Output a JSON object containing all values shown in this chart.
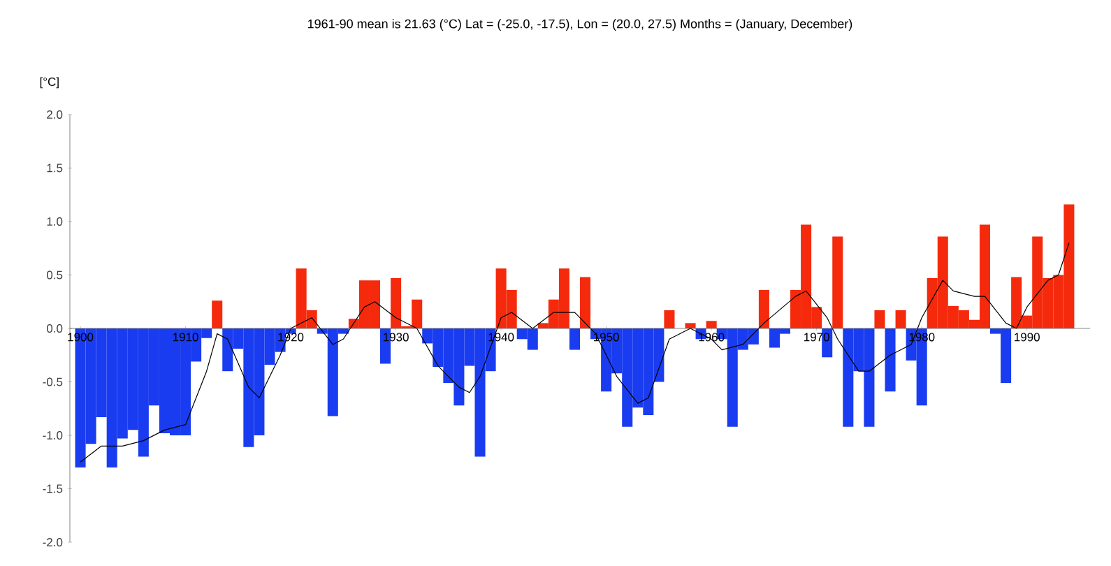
{
  "chart_data": {
    "type": "bar",
    "title": "1961-90 mean is 21.63 (°C)    Lat = (-25.0, -17.5), Lon = (20.0, 27.5)    Months = (January, December)",
    "ylabel": "[°C]",
    "x": [
      1900,
      1901,
      1902,
      1903,
      1904,
      1905,
      1906,
      1907,
      1908,
      1909,
      1910,
      1911,
      1912,
      1913,
      1914,
      1915,
      1916,
      1917,
      1918,
      1919,
      1920,
      1921,
      1922,
      1923,
      1924,
      1925,
      1926,
      1927,
      1928,
      1929,
      1930,
      1931,
      1932,
      1933,
      1934,
      1935,
      1936,
      1937,
      1938,
      1939,
      1940,
      1941,
      1942,
      1943,
      1944,
      1945,
      1946,
      1947,
      1948,
      1949,
      1950,
      1951,
      1952,
      1953,
      1954,
      1955,
      1956,
      1957,
      1958,
      1959,
      1960,
      1961,
      1962,
      1963,
      1964,
      1965,
      1966,
      1967,
      1968,
      1969,
      1970,
      1971,
      1972,
      1973,
      1974,
      1975,
      1976,
      1977,
      1978,
      1979,
      1980,
      1981,
      1982,
      1983,
      1984,
      1985,
      1986,
      1987,
      1988,
      1989,
      1990,
      1991,
      1992,
      1993,
      1994
    ],
    "series": [
      {
        "values": [
          -1.3,
          -1.08,
          -0.83,
          -1.3,
          -1.03,
          -0.95,
          -1.2,
          -0.72,
          -0.98,
          -1.0,
          -1.0,
          -0.31,
          -0.09,
          0.26,
          -0.4,
          -0.19,
          -1.11,
          -1.0,
          -0.34,
          -0.22,
          -0.05,
          0.56,
          0.17,
          -0.05,
          -0.82,
          -0.05,
          0.09,
          0.45,
          0.45,
          -0.33,
          0.47,
          0.02,
          0.27,
          -0.14,
          -0.36,
          -0.51,
          -0.72,
          -0.35,
          -1.2,
          -0.4,
          0.56,
          0.36,
          -0.1,
          -0.2,
          0.05,
          0.27,
          0.56,
          -0.2,
          0.48,
          -0.1,
          -0.59,
          -0.42,
          -0.92,
          -0.74,
          -0.81,
          -0.5,
          0.17,
          0.0,
          0.05,
          -0.1,
          0.07,
          -0.1,
          -0.92,
          -0.2,
          -0.15,
          0.36,
          -0.18,
          -0.05,
          0.36,
          0.97,
          0.2,
          -0.27,
          0.86,
          -0.92,
          -0.4,
          -0.92,
          0.17,
          -0.59,
          0.17,
          -0.3,
          -0.72,
          0.47,
          0.86,
          0.21,
          0.17,
          0.08,
          0.97,
          -0.05,
          -0.51,
          0.48,
          0.12,
          0.86,
          0.47,
          0.5,
          1.16
        ],
        "colors": [
          "#1a3cf0",
          "#1a3cf0",
          "#1a3cf0",
          "#1a3cf0",
          "#1a3cf0",
          "#1a3cf0",
          "#1a3cf0",
          "#1a3cf0",
          "#1a3cf0",
          "#1a3cf0",
          "#1a3cf0",
          "#1a3cf0",
          "#1a3cf0",
          "#f52a0c",
          "#1a3cf0",
          "#1a3cf0",
          "#1a3cf0",
          "#1a3cf0",
          "#1a3cf0",
          "#1a3cf0",
          "#1a3cf0",
          "#f52a0c",
          "#f52a0c",
          "#1a3cf0",
          "#1a3cf0",
          "#1a3cf0",
          "#f52a0c",
          "#f52a0c",
          "#f52a0c",
          "#1a3cf0",
          "#f52a0c",
          "#f52a0c",
          "#f52a0c",
          "#1a3cf0",
          "#1a3cf0",
          "#1a3cf0",
          "#1a3cf0",
          "#1a3cf0",
          "#1a3cf0",
          "#1a3cf0",
          "#f52a0c",
          "#f52a0c",
          "#1a3cf0",
          "#1a3cf0",
          "#f52a0c",
          "#f52a0c",
          "#f52a0c",
          "#1a3cf0",
          "#f52a0c",
          "#1a3cf0",
          "#1a3cf0",
          "#1a3cf0",
          "#1a3cf0",
          "#1a3cf0",
          "#1a3cf0",
          "#1a3cf0",
          "#f52a0c",
          "#f52a0c",
          "#f52a0c",
          "#1a3cf0",
          "#f52a0c",
          "#1a3cf0",
          "#1a3cf0",
          "#1a3cf0",
          "#1a3cf0",
          "#f52a0c",
          "#1a3cf0",
          "#1a3cf0",
          "#f52a0c",
          "#f52a0c",
          "#f52a0c",
          "#1a3cf0",
          "#f52a0c",
          "#1a3cf0",
          "#1a3cf0",
          "#1a3cf0",
          "#f52a0c",
          "#1a3cf0",
          "#f52a0c",
          "#1a3cf0",
          "#1a3cf0",
          "#f52a0c",
          "#f52a0c",
          "#f52a0c",
          "#f52a0c",
          "#f52a0c",
          "#f52a0c",
          "#1a3cf0",
          "#1a3cf0",
          "#f52a0c",
          "#f52a0c",
          "#f52a0c",
          "#f52a0c",
          "#f52a0c",
          "#f52a0c"
        ]
      },
      {
        "type": "line",
        "color": "#000000",
        "x": [
          1900,
          1902,
          1904,
          1906,
          1908,
          1910,
          1912,
          1913,
          1914,
          1916,
          1917,
          1919,
          1920,
          1922,
          1924,
          1925,
          1927,
          1928,
          1930,
          1932,
          1934,
          1936,
          1937,
          1938,
          1940,
          1941,
          1943,
          1945,
          1947,
          1949,
          1951,
          1953,
          1954,
          1956,
          1958,
          1960,
          1961,
          1963,
          1965,
          1968,
          1969,
          1971,
          1972,
          1974,
          1975,
          1977,
          1979,
          1980,
          1982,
          1983,
          1985,
          1986,
          1988,
          1989,
          1990,
          1992,
          1993,
          1994
        ],
        "values": [
          -1.25,
          -1.1,
          -1.1,
          -1.05,
          -0.95,
          -0.9,
          -0.4,
          -0.05,
          -0.1,
          -0.55,
          -0.65,
          -0.25,
          0.0,
          0.1,
          -0.15,
          -0.1,
          0.2,
          0.25,
          0.1,
          0.0,
          -0.35,
          -0.55,
          -0.6,
          -0.45,
          0.1,
          0.15,
          0.0,
          0.15,
          0.15,
          -0.05,
          -0.45,
          -0.7,
          -0.65,
          -0.1,
          0.0,
          -0.1,
          -0.2,
          -0.15,
          0.05,
          0.3,
          0.35,
          0.1,
          -0.1,
          -0.4,
          -0.4,
          -0.25,
          -0.15,
          0.1,
          0.45,
          0.35,
          0.3,
          0.3,
          0.05,
          0.0,
          0.2,
          0.45,
          0.5,
          0.8
        ]
      }
    ],
    "xlim": [
      1899,
      1996
    ],
    "ylim": [
      -2.0,
      2.0
    ],
    "xticks": [
      1900,
      1910,
      1920,
      1930,
      1940,
      1950,
      1960,
      1970,
      1980,
      1990
    ],
    "yticks": [
      {
        "value": -2.0,
        "label": "-2.0"
      },
      {
        "value": -1.5,
        "label": "-1.5"
      },
      {
        "value": -1.0,
        "label": "-1.0"
      },
      {
        "value": -0.5,
        "label": "-0.5"
      },
      {
        "value": 0.0,
        "label": "0.0"
      },
      {
        "value": 0.5,
        "label": "0.5"
      },
      {
        "value": 1.0,
        "label": "1.0"
      },
      {
        "value": 1.5,
        "label": "1.5"
      },
      {
        "value": 2.0,
        "label": "2.0"
      }
    ]
  }
}
